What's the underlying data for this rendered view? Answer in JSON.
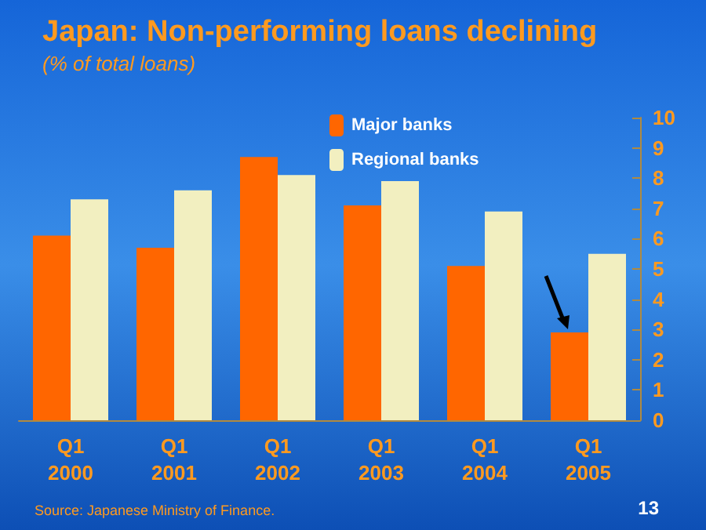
{
  "chart_data": {
    "type": "bar",
    "title": "Japan: Non-performing loans declining",
    "subtitle": "(% of total loans)",
    "categories": [
      "Q1\n2000",
      "Q1\n2001",
      "Q1\n2002",
      "Q1\n2003",
      "Q1\n2004",
      "Q1\n2005"
    ],
    "series": [
      {
        "name": "Major banks",
        "color": "#ff6600",
        "values": [
          6.1,
          5.7,
          8.7,
          7.1,
          5.1,
          2.9
        ]
      },
      {
        "name": "Regional banks",
        "color": "#f2efc0",
        "values": [
          7.3,
          7.6,
          8.1,
          7.9,
          6.9,
          5.5
        ]
      }
    ],
    "ylim": [
      0,
      10
    ],
    "yticks": [
      0,
      1,
      2,
      3,
      4,
      5,
      6,
      7,
      8,
      9,
      10
    ],
    "grid": false,
    "legend": "top",
    "annotations": [
      "Source: Japanese Ministry of Finance.",
      "13"
    ]
  }
}
